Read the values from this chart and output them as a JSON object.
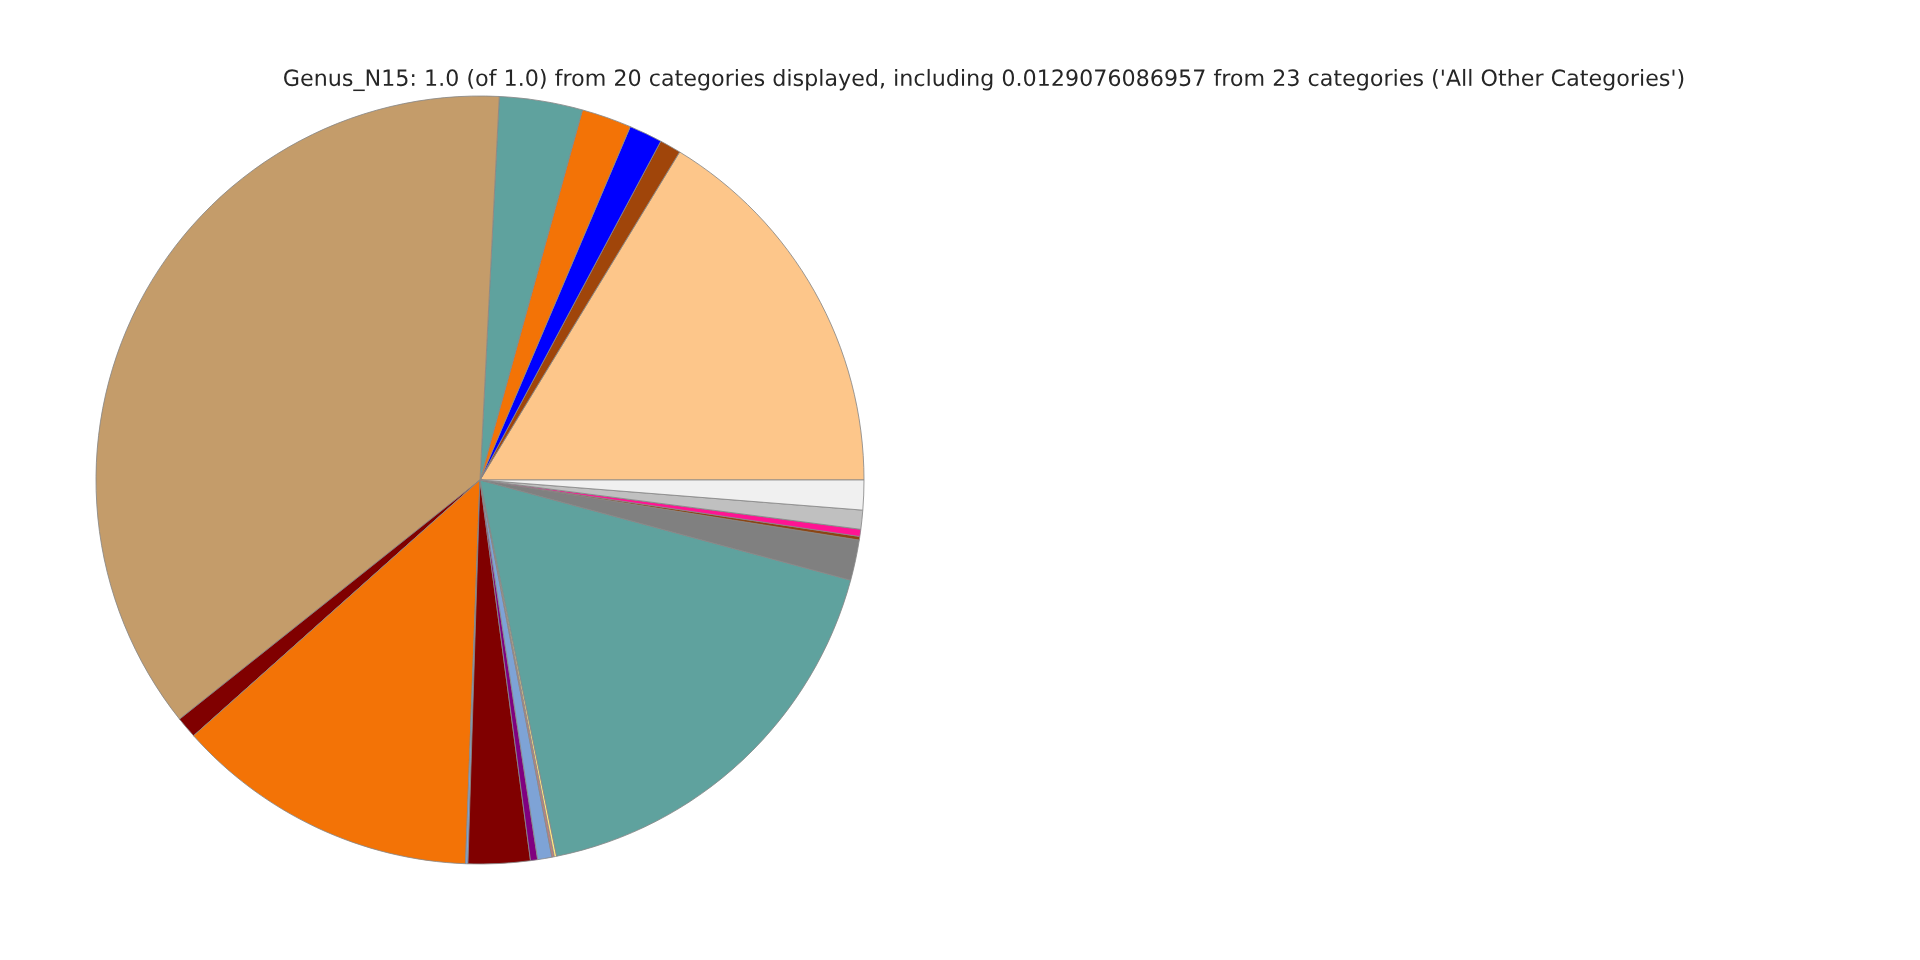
{
  "chart_data": {
    "type": "pie",
    "title": "Genus_N15: 1.0 (of 1.0) from 20 categories displayed, including 0.0129076086957 from 23 categories ('All Other Categories')",
    "categories": [
      null,
      null,
      null,
      null,
      null,
      null,
      null,
      null,
      null,
      null,
      null,
      null,
      null,
      null,
      null,
      null,
      null,
      null,
      null,
      null
    ],
    "values": [
      16.3,
      0.9,
      1.4,
      2.1,
      3.5,
      36.5,
      0.9,
      12.8,
      0.1,
      2.6,
      0.3,
      0.6,
      0.1,
      0.1,
      17.6,
      1.7,
      0.15,
      0.3,
      0.8,
      1.25
    ],
    "colors": [
      "#fdc68a",
      "#a0450a",
      "#0000ff",
      "#f37306",
      "#5fa29e",
      "#c49c6a",
      "#800000",
      "#f37306",
      "#7ea3d6",
      "#800000",
      "#800080",
      "#7ea3d6",
      "#c08080",
      "#ffe680",
      "#5fa29e",
      "#808080",
      "#8b4513",
      "#ff1493",
      "#c0c0c0",
      "#f0f0f0"
    ],
    "legend": false
  }
}
